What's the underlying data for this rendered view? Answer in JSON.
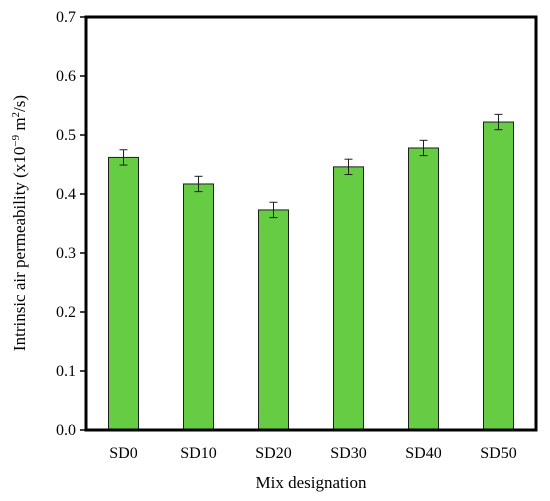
{
  "chart_data": {
    "type": "bar",
    "xlabel": "Mix designation",
    "ylabel_main": "Intrinsic air permeability (x10",
    "ylabel_exp1": "−9",
    "ylabel_mid": " m",
    "ylabel_exp2": "2",
    "ylabel_end": "/s)",
    "categories": [
      "SD0",
      "SD10",
      "SD20",
      "SD30",
      "SD40",
      "SD50"
    ],
    "values": [
      0.462,
      0.417,
      0.373,
      0.446,
      0.478,
      0.522
    ],
    "errors": [
      0.013,
      0.013,
      0.013,
      0.013,
      0.013,
      0.013
    ],
    "ylim": [
      0.0,
      0.7
    ],
    "yticks": [
      "0.0",
      "0.1",
      "0.2",
      "0.3",
      "0.4",
      "0.5",
      "0.6",
      "0.7"
    ],
    "grid": false,
    "legend": false,
    "colors": {
      "bar_fill": "#66cc44",
      "bar_stroke": "#1e1e1e",
      "frame": "#000000"
    }
  }
}
